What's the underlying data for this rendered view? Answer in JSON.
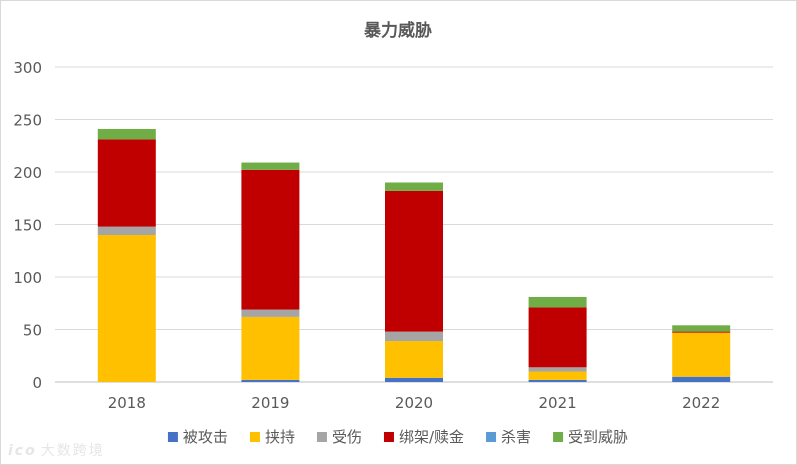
{
  "chart_data": {
    "type": "bar",
    "stacked": true,
    "title": "暴力威胁",
    "categories": [
      "2018",
      "2019",
      "2020",
      "2021",
      "2022"
    ],
    "ylim": [
      0,
      300
    ],
    "yticks": [
      0,
      50,
      100,
      150,
      200,
      250,
      300
    ],
    "grid": true,
    "legend_position": "bottom",
    "series": [
      {
        "name": "被攻击",
        "color": "#4472c4",
        "values": [
          0,
          2,
          4,
          2,
          5
        ]
      },
      {
        "name": "挟持",
        "color": "#ffc000",
        "values": [
          140,
          60,
          35,
          8,
          42
        ]
      },
      {
        "name": "受伤",
        "color": "#a5a5a5",
        "values": [
          8,
          7,
          9,
          4,
          0
        ]
      },
      {
        "name": "绑架/赎金",
        "color": "#c00000",
        "values": [
          83,
          133,
          134,
          57,
          1
        ]
      },
      {
        "name": "杀害",
        "color": "#5b9bd5",
        "values": [
          0,
          0,
          0,
          0,
          0
        ]
      },
      {
        "name": "受到威胁",
        "color": "#70ad47",
        "values": [
          10,
          7,
          8,
          10,
          6
        ]
      }
    ]
  },
  "watermark": {
    "logo_text": "ico",
    "text": "大数跨境"
  }
}
